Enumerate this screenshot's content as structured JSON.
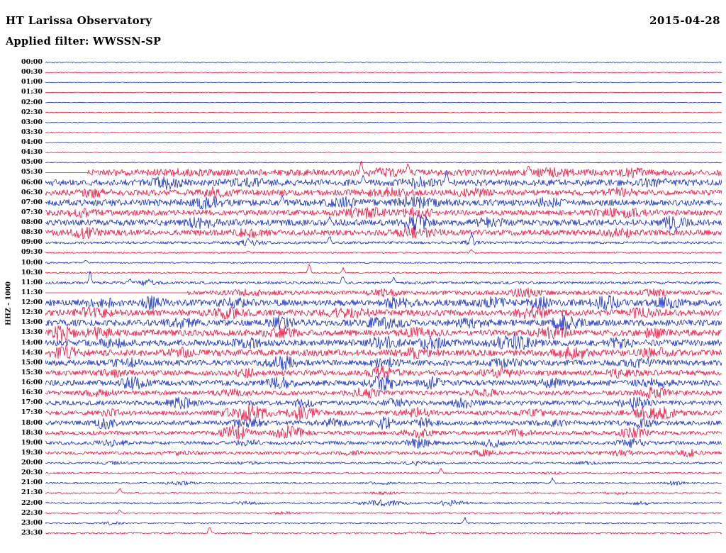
{
  "header": {
    "station_title": "HT Larissa Observatory",
    "date": "2015-04-28",
    "filter_label": "Applied filter: WWSSN-SP",
    "channel_label": "HHZ - 1000"
  },
  "chart_data": {
    "type": "line",
    "title": "HT Larissa Observatory 24-hour helicorder, channel HHZ, 2015-04-28, WWSSN-SP filter",
    "minutes_per_row": 30,
    "legend_position": "none",
    "grid": false,
    "palette": {
      "r": "#f20233",
      "b": "#0822c6"
    },
    "row_schema": {
      "l": "row start time label",
      "c": "trace color key (r=red, b=blue)",
      "a": "baseline noise amplitude in px",
      "b": "noise bursts as [center 0-1, width, extra amplitude px]",
      "s": "impulsive spikes as [position 0-1, peak amplitude px]",
      "st": "fraction of row before trace recording starts"
    },
    "rows": [
      {
        "l": "00:00",
        "c": "b",
        "a": 0.5
      },
      {
        "l": "00:30",
        "c": "r",
        "a": 0.5
      },
      {
        "l": "01:00",
        "c": "b",
        "a": 0.5
      },
      {
        "l": "01:30",
        "c": "r",
        "a": 0.5
      },
      {
        "l": "02:00",
        "c": "b",
        "a": 0.5
      },
      {
        "l": "02:30",
        "c": "r",
        "a": 0.5
      },
      {
        "l": "03:00",
        "c": "b",
        "a": 0.5
      },
      {
        "l": "03:30",
        "c": "r",
        "a": 0.5
      },
      {
        "l": "04:00",
        "c": "b",
        "a": 0.5
      },
      {
        "l": "04:30",
        "c": "r",
        "a": 0.6
      },
      {
        "l": "05:00",
        "c": "b",
        "a": 0.6
      },
      {
        "l": "05:30",
        "c": "r",
        "a": 4.5,
        "st": 0.062,
        "b": [
          [
            0.2,
            0.03,
            2
          ],
          [
            0.5,
            0.02,
            3
          ],
          [
            0.75,
            0.03,
            3
          ],
          [
            0.87,
            0.02,
            3
          ]
        ],
        "s": [
          [
            0.467,
            20
          ],
          [
            0.536,
            16
          ],
          [
            0.714,
            14
          ]
        ]
      },
      {
        "l": "06:00",
        "c": "b",
        "a": 4.5,
        "b": [
          [
            0.18,
            0.02,
            6
          ],
          [
            0.3,
            0.03,
            3
          ],
          [
            0.55,
            0.02,
            5
          ],
          [
            0.9,
            0.02,
            3
          ]
        ],
        "s": [
          [
            0.593,
            22
          ],
          [
            0.47,
            12
          ]
        ]
      },
      {
        "l": "06:30",
        "c": "r",
        "a": 4,
        "b": [
          [
            0.07,
            0.02,
            4
          ],
          [
            0.25,
            0.02,
            5
          ],
          [
            0.5,
            0.03,
            4
          ],
          [
            0.63,
            0.02,
            4
          ],
          [
            0.85,
            0.02,
            4
          ]
        ]
      },
      {
        "l": "07:00",
        "c": "b",
        "a": 4.5,
        "b": [
          [
            0.24,
            0.02,
            6
          ],
          [
            0.44,
            0.02,
            5
          ],
          [
            0.55,
            0.03,
            5
          ],
          [
            0.74,
            0.02,
            4
          ]
        ],
        "s": [
          [
            0.35,
            12
          ]
        ]
      },
      {
        "l": "07:30",
        "c": "r",
        "a": 4,
        "b": [
          [
            0.05,
            0.02,
            4
          ],
          [
            0.47,
            0.03,
            5
          ],
          [
            0.55,
            0.02,
            5
          ],
          [
            0.85,
            0.03,
            4
          ]
        ]
      },
      {
        "l": "08:00",
        "c": "b",
        "a": 4.5,
        "b": [
          [
            0.23,
            0.02,
            5
          ],
          [
            0.55,
            0.02,
            7
          ],
          [
            0.66,
            0.02,
            5
          ],
          [
            0.93,
            0.015,
            8
          ]
        ],
        "s": [
          [
            0.42,
            10
          ]
        ]
      },
      {
        "l": "08:30",
        "c": "r",
        "a": 4,
        "b": [
          [
            0.06,
            0.02,
            5
          ],
          [
            0.3,
            0.02,
            4
          ],
          [
            0.55,
            0.03,
            5
          ],
          [
            0.85,
            0.02,
            4
          ]
        ]
      },
      {
        "l": "09:00",
        "c": "b",
        "a": 1.8,
        "b": [
          [
            0.3,
            0.02,
            3
          ],
          [
            0.63,
            0.01,
            4
          ]
        ],
        "s": [
          [
            0.42,
            14
          ],
          [
            0.63,
            16
          ],
          [
            0.3,
            8
          ]
        ]
      },
      {
        "l": "09:30",
        "c": "r",
        "a": 1,
        "s": [
          [
            0.63,
            6
          ],
          [
            0.3,
            4
          ]
        ]
      },
      {
        "l": "10:00",
        "c": "b",
        "a": 1,
        "s": [
          [
            0.06,
            5
          ]
        ]
      },
      {
        "l": "10:30",
        "c": "r",
        "a": 1,
        "s": [
          [
            0.39,
            16
          ],
          [
            0.44,
            8
          ]
        ]
      },
      {
        "l": "11:00",
        "c": "b",
        "a": 1.8,
        "b": [
          [
            0.15,
            0.015,
            4
          ]
        ],
        "s": [
          [
            0.066,
            18
          ],
          [
            0.125,
            8
          ],
          [
            0.44,
            16
          ],
          [
            0.515,
            10
          ]
        ]
      },
      {
        "l": "11:30",
        "c": "r",
        "a": 3,
        "st": 0.21,
        "b": [
          [
            0.3,
            0.03,
            3
          ],
          [
            0.5,
            0.02,
            4
          ],
          [
            0.71,
            0.02,
            5
          ],
          [
            0.9,
            0.02,
            3
          ]
        ]
      },
      {
        "l": "12:00",
        "c": "b",
        "a": 4.5,
        "b": [
          [
            0.08,
            0.02,
            5
          ],
          [
            0.16,
            0.015,
            7
          ],
          [
            0.28,
            0.02,
            4
          ],
          [
            0.52,
            0.02,
            5
          ],
          [
            0.66,
            0.02,
            5
          ],
          [
            0.73,
            0.015,
            6
          ],
          [
            0.83,
            0.02,
            7
          ],
          [
            0.92,
            0.02,
            5
          ]
        ]
      },
      {
        "l": "12:30",
        "c": "r",
        "a": 4.5,
        "b": [
          [
            0.07,
            0.02,
            7
          ],
          [
            0.27,
            0.02,
            5
          ],
          [
            0.45,
            0.03,
            4
          ],
          [
            0.72,
            0.02,
            6
          ],
          [
            0.88,
            0.02,
            4
          ]
        ]
      },
      {
        "l": "13:00",
        "c": "b",
        "a": 4.5,
        "b": [
          [
            0.2,
            0.02,
            4
          ],
          [
            0.35,
            0.02,
            6
          ],
          [
            0.5,
            0.03,
            5
          ],
          [
            0.63,
            0.02,
            4
          ],
          [
            0.77,
            0.02,
            7
          ]
        ]
      },
      {
        "l": "13:30",
        "c": "r",
        "a": 4.5,
        "b": [
          [
            0.025,
            0.015,
            8
          ],
          [
            0.08,
            0.02,
            5
          ],
          [
            0.35,
            0.02,
            5
          ],
          [
            0.55,
            0.02,
            4
          ],
          [
            0.75,
            0.02,
            6
          ],
          [
            0.9,
            0.02,
            4
          ]
        ]
      },
      {
        "l": "14:00",
        "c": "b",
        "a": 4.5,
        "b": [
          [
            0.1,
            0.02,
            4
          ],
          [
            0.3,
            0.02,
            4
          ],
          [
            0.5,
            0.02,
            6
          ],
          [
            0.57,
            0.02,
            5
          ],
          [
            0.69,
            0.025,
            9
          ],
          [
            0.85,
            0.02,
            4
          ]
        ]
      },
      {
        "l": "14:30",
        "c": "r",
        "a": 4.5,
        "b": [
          [
            0.03,
            0.02,
            6
          ],
          [
            0.2,
            0.02,
            4
          ],
          [
            0.55,
            0.02,
            5
          ],
          [
            0.78,
            0.02,
            8
          ],
          [
            0.9,
            0.02,
            4
          ]
        ]
      },
      {
        "l": "15:00",
        "c": "b",
        "a": 4,
        "b": [
          [
            0.12,
            0.02,
            4
          ],
          [
            0.35,
            0.02,
            7
          ],
          [
            0.5,
            0.02,
            5
          ],
          [
            0.68,
            0.02,
            4
          ],
          [
            0.88,
            0.02,
            4
          ]
        ]
      },
      {
        "l": "15:30",
        "c": "r",
        "a": 3.8,
        "b": [
          [
            0.1,
            0.02,
            3
          ],
          [
            0.3,
            0.02,
            4
          ],
          [
            0.5,
            0.02,
            7
          ],
          [
            0.67,
            0.02,
            5
          ],
          [
            0.85,
            0.02,
            4
          ]
        ]
      },
      {
        "l": "16:00",
        "c": "b",
        "a": 4,
        "b": [
          [
            0.13,
            0.02,
            6
          ],
          [
            0.35,
            0.02,
            5
          ],
          [
            0.5,
            0.02,
            8
          ],
          [
            0.57,
            0.015,
            6
          ],
          [
            0.75,
            0.02,
            4
          ],
          [
            0.9,
            0.02,
            5
          ]
        ]
      },
      {
        "l": "16:30",
        "c": "r",
        "a": 3.2,
        "b": [
          [
            0.08,
            0.02,
            3
          ],
          [
            0.28,
            0.02,
            3
          ],
          [
            0.47,
            0.02,
            5
          ],
          [
            0.65,
            0.02,
            3
          ],
          [
            0.9,
            0.02,
            6
          ]
        ]
      },
      {
        "l": "17:00",
        "c": "b",
        "a": 3.2,
        "b": [
          [
            0.2,
            0.02,
            6
          ],
          [
            0.38,
            0.02,
            4
          ],
          [
            0.52,
            0.02,
            4
          ],
          [
            0.62,
            0.02,
            5
          ],
          [
            0.87,
            0.02,
            7
          ]
        ]
      },
      {
        "l": "17:30",
        "c": "r",
        "a": 3.2,
        "b": [
          [
            0.1,
            0.02,
            3
          ],
          [
            0.3,
            0.03,
            10
          ],
          [
            0.38,
            0.02,
            8
          ],
          [
            0.55,
            0.02,
            5
          ],
          [
            0.72,
            0.02,
            3
          ],
          [
            0.9,
            0.03,
            8
          ]
        ]
      },
      {
        "l": "18:00",
        "c": "b",
        "a": 3.2,
        "b": [
          [
            0.09,
            0.015,
            7
          ],
          [
            0.3,
            0.02,
            6
          ],
          [
            0.42,
            0.02,
            4
          ],
          [
            0.5,
            0.015,
            7
          ],
          [
            0.56,
            0.015,
            5
          ],
          [
            0.75,
            0.02,
            3
          ],
          [
            0.88,
            0.02,
            4
          ]
        ]
      },
      {
        "l": "18:30",
        "c": "r",
        "a": 2.8,
        "b": [
          [
            0.28,
            0.02,
            9
          ],
          [
            0.36,
            0.02,
            8
          ],
          [
            0.55,
            0.02,
            5
          ],
          [
            0.7,
            0.02,
            3
          ],
          [
            0.87,
            0.02,
            6
          ]
        ]
      },
      {
        "l": "19:00",
        "c": "b",
        "a": 2.6,
        "b": [
          [
            0.1,
            0.02,
            3
          ],
          [
            0.3,
            0.02,
            3
          ],
          [
            0.55,
            0.02,
            5
          ],
          [
            0.66,
            0.02,
            4
          ],
          [
            0.87,
            0.02,
            5
          ]
        ]
      },
      {
        "l": "19:30",
        "c": "r",
        "a": 2.2,
        "b": [
          [
            0.2,
            0.02,
            2
          ],
          [
            0.45,
            0.02,
            2
          ],
          [
            0.65,
            0.02,
            4
          ],
          [
            0.85,
            0.02,
            3
          ],
          [
            0.95,
            0.015,
            4
          ]
        ]
      },
      {
        "l": "20:00",
        "c": "b",
        "a": 1.3,
        "b": [
          [
            0.1,
            0.02,
            1.5
          ],
          [
            0.3,
            0.02,
            1.5
          ],
          [
            0.55,
            0.02,
            2.5
          ],
          [
            0.8,
            0.02,
            1.5
          ]
        ]
      },
      {
        "l": "20:30",
        "c": "r",
        "a": 1.1,
        "b": [
          [
            0.2,
            0.02,
            1
          ],
          [
            0.75,
            0.02,
            1
          ]
        ],
        "s": [
          [
            0.585,
            8
          ]
        ]
      },
      {
        "l": "21:00",
        "c": "b",
        "a": 1.1,
        "b": [
          [
            0.2,
            0.02,
            2
          ],
          [
            0.5,
            0.02,
            1.5
          ],
          [
            0.93,
            0.015,
            2.5
          ]
        ],
        "s": [
          [
            0.75,
            9
          ]
        ]
      },
      {
        "l": "21:30",
        "c": "r",
        "a": 1,
        "b": [
          [
            0.5,
            0.02,
            1.5
          ],
          [
            0.85,
            0.02,
            1.5
          ]
        ],
        "s": [
          [
            0.11,
            9
          ]
        ]
      },
      {
        "l": "22:00",
        "c": "b",
        "a": 1.2,
        "b": [
          [
            0.3,
            0.02,
            2
          ],
          [
            0.5,
            0.03,
            4
          ],
          [
            0.6,
            0.02,
            4
          ],
          [
            0.88,
            0.015,
            2
          ]
        ]
      },
      {
        "l": "22:30",
        "c": "r",
        "a": 1,
        "b": [
          [
            0.35,
            0.02,
            1.5
          ],
          [
            0.75,
            0.02,
            1.5
          ]
        ],
        "s": [
          [
            0.11,
            6
          ]
        ]
      },
      {
        "l": "23:00",
        "c": "b",
        "a": 1,
        "b": [
          [
            0.1,
            0.02,
            1.5
          ]
        ],
        "s": [
          [
            0.62,
            10
          ]
        ]
      },
      {
        "l": "23:30",
        "c": "r",
        "a": 1,
        "b": [
          [
            0.55,
            0.02,
            1
          ]
        ],
        "s": [
          [
            0.243,
            12
          ]
        ]
      }
    ]
  }
}
